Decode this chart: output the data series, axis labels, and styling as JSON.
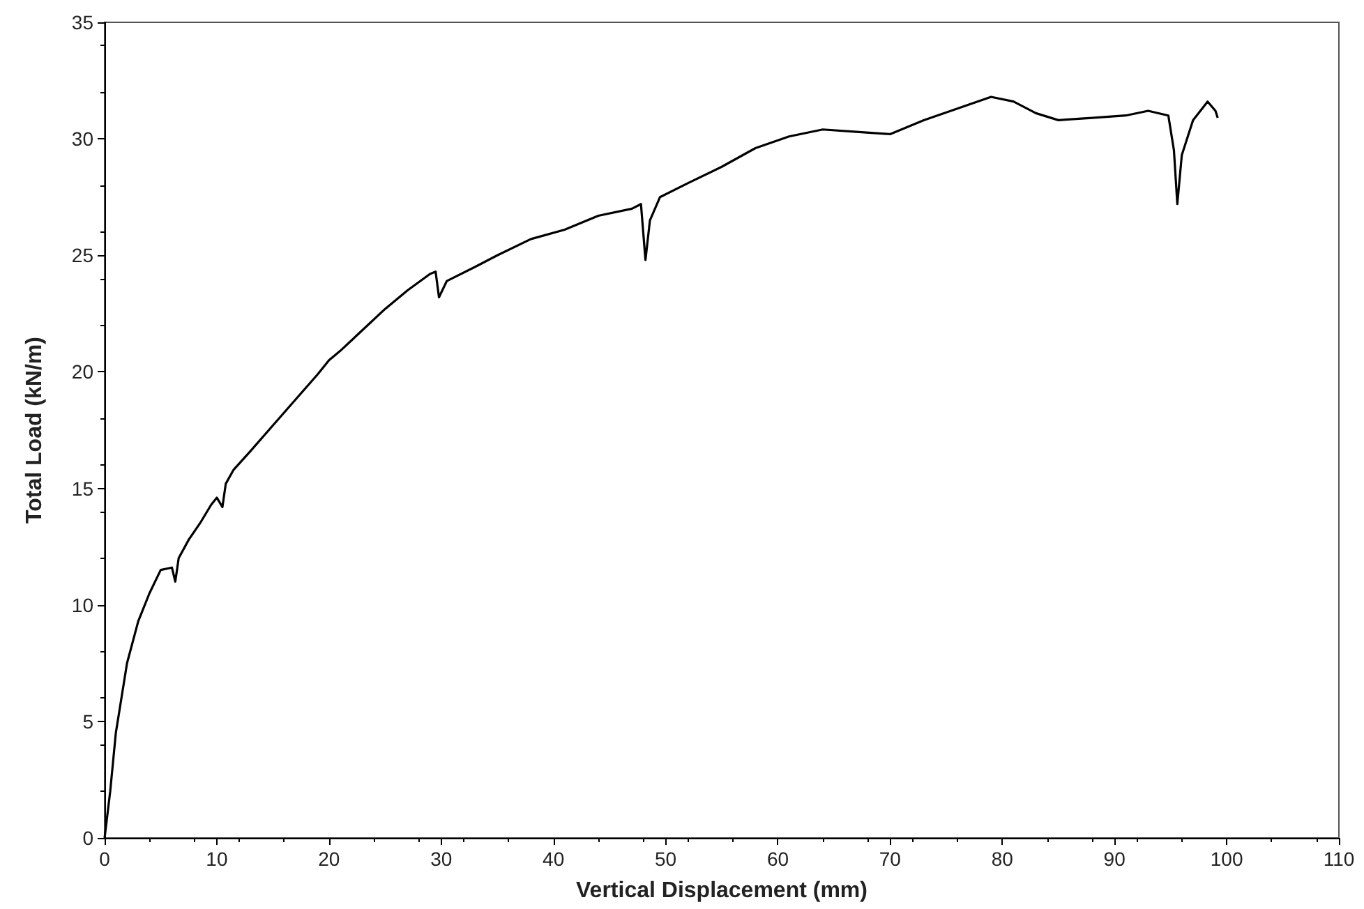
{
  "chart_data": {
    "type": "line",
    "xlabel": "Vertical Displacement (mm)",
    "ylabel": "Total Load (kN/m)",
    "x": [
      0,
      0.5,
      1,
      2,
      3,
      4,
      5,
      6,
      6.3,
      6.6,
      7.5,
      8.5,
      9.5,
      10,
      10.5,
      10.8,
      11.5,
      13,
      15,
      17,
      19,
      20,
      21,
      23,
      25,
      27,
      29,
      29.5,
      29.8,
      30.5,
      33,
      35,
      38,
      41,
      44,
      47,
      47.8,
      48.2,
      48.6,
      49.5,
      52,
      55,
      58,
      61,
      64,
      67,
      70,
      73,
      76,
      79,
      81,
      83,
      85,
      88,
      91,
      93,
      94.8,
      95.3,
      95.6,
      96,
      97,
      98.3,
      99,
      99.2
    ],
    "series": [
      {
        "color": "#000000",
        "values": [
          0,
          2,
          4.5,
          7.5,
          9.3,
          10.5,
          11.5,
          11.6,
          11,
          12,
          12.8,
          13.5,
          14.3,
          14.6,
          14.2,
          15.2,
          15.8,
          16.6,
          17.7,
          18.8,
          19.9,
          20.5,
          20.9,
          21.8,
          22.7,
          23.5,
          24.2,
          24.3,
          23.2,
          23.9,
          24.5,
          25,
          25.7,
          26.1,
          26.7,
          27,
          27.2,
          24.8,
          26.5,
          27.5,
          28.1,
          28.8,
          29.6,
          30.1,
          30.4,
          30.3,
          30.2,
          30.8,
          31.3,
          31.8,
          31.6,
          31.1,
          30.8,
          30.9,
          31,
          31.2,
          31,
          29.5,
          27.2,
          29.3,
          30.8,
          31.6,
          31.2,
          30.9
        ]
      }
    ],
    "xlim": [
      0,
      110
    ],
    "xticks": [
      0,
      10,
      20,
      30,
      40,
      50,
      60,
      70,
      80,
      90,
      100,
      110
    ],
    "ylim": [
      0,
      35
    ],
    "yticks": [
      0,
      5,
      10,
      15,
      20,
      25,
      30,
      35
    ],
    "grid": false,
    "marker": "none",
    "line_style": "solid"
  }
}
